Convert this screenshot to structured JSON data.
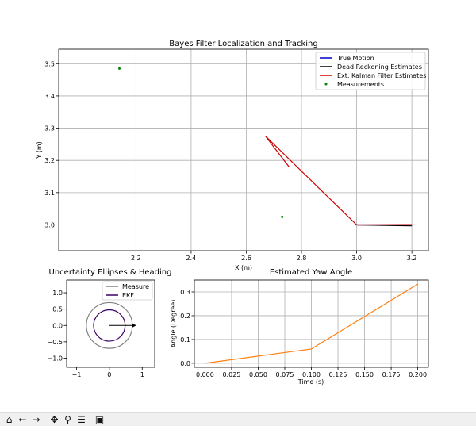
{
  "chart_data": [
    {
      "type": "line",
      "title": "Bayes Filter Localization and Tracking",
      "xlabel": "X (m)",
      "ylabel": "Y (m)",
      "xlim": [
        1.92,
        3.26
      ],
      "ylim": [
        2.92,
        3.545
      ],
      "xticks": [
        "2.2",
        "2.4",
        "2.6",
        "2.8",
        "3.0",
        "3.2"
      ],
      "yticks": [
        "3.0",
        "3.1",
        "3.2",
        "3.3",
        "3.4",
        "3.5"
      ],
      "grid": true,
      "legend_position": "top-right",
      "series": [
        {
          "name": "True Motion",
          "color": "#0000cc",
          "style": "line",
          "x": [
            3.0,
            3.2
          ],
          "y": [
            3.0,
            3.0
          ]
        },
        {
          "name": "Dead Reckoning Estimates",
          "color": "#000000",
          "style": "line",
          "x": [
            3.0,
            3.2
          ],
          "y": [
            3.0,
            2.997
          ]
        },
        {
          "name": "Ext. Kalman Filter Estimates",
          "color": "#cc0000",
          "style": "line",
          "x": [
            3.0,
            3.2,
            3.0,
            2.67,
            2.755
          ],
          "y": [
            3.0,
            3.001,
            3.0,
            3.275,
            3.18
          ]
        },
        {
          "name": "Measurements",
          "color": "#008000",
          "style": "scatter",
          "x": [
            2.14,
            2.73
          ],
          "y": [
            3.485,
            3.025
          ]
        }
      ]
    },
    {
      "type": "line",
      "title": "Uncertainty Ellipses & Heading",
      "xlim": [
        -1.3,
        1.38
      ],
      "ylim": [
        -1.28,
        1.39
      ],
      "xticks": [
        "−1",
        "0",
        "1"
      ],
      "yticks": [
        "−1.0",
        "−0.5",
        "0.0",
        "0.5",
        "1.0"
      ],
      "legend_position": "top-right",
      "series": [
        {
          "name": "Measure",
          "color": "#808080",
          "radius": 0.7
        },
        {
          "name": "EKF",
          "color": "#3a0063",
          "radius": 0.48
        }
      ],
      "heading_arrow": {
        "x": 0.0,
        "y": 0.0,
        "dx": 0.82,
        "dy": 0.0
      }
    },
    {
      "type": "line",
      "title": "Estimated Yaw Angle",
      "xlabel": "Time (s)",
      "ylabel": "Angle (Degree)",
      "xlim": [
        -0.01,
        0.21
      ],
      "ylim": [
        -0.017,
        0.35
      ],
      "xticks": [
        "0.000",
        "0.025",
        "0.050",
        "0.075",
        "0.100",
        "0.125",
        "0.150",
        "0.175",
        "0.200"
      ],
      "yticks": [
        "0.0",
        "0.1",
        "0.2",
        "0.3"
      ],
      "grid": true,
      "series": [
        {
          "color": "#ff7f0e",
          "x": [
            0.0,
            0.1,
            0.2
          ],
          "y": [
            0.0,
            0.06,
            0.333
          ]
        }
      ]
    }
  ],
  "toolbar": [
    {
      "name": "home-icon",
      "glyph": "⌂"
    },
    {
      "name": "back-arrow-icon",
      "glyph": "←"
    },
    {
      "name": "forward-arrow-icon",
      "glyph": "→"
    },
    {
      "name": "pan-move-icon",
      "glyph": "✥"
    },
    {
      "name": "zoom-magnifier-icon",
      "glyph": "⚲"
    },
    {
      "name": "configure-subplots-icon",
      "glyph": "☰"
    },
    {
      "name": "save-floppy-icon",
      "glyph": "▣"
    }
  ]
}
